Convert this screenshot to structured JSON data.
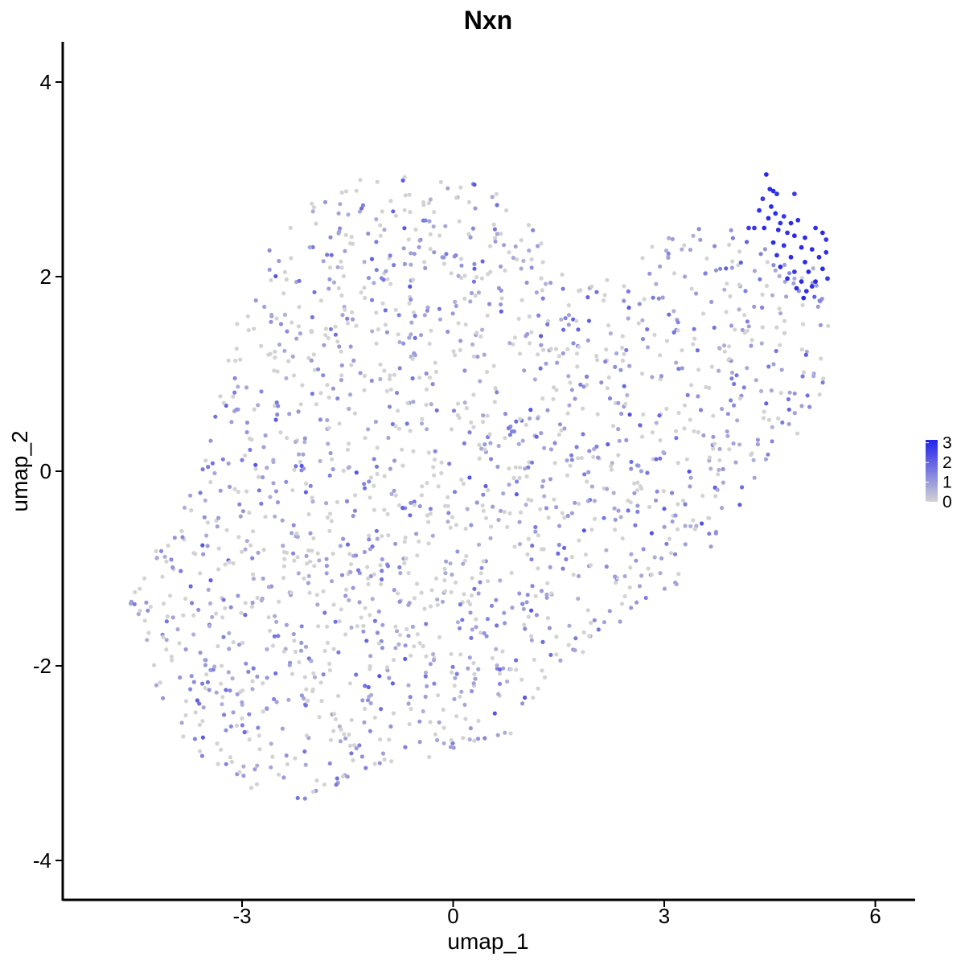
{
  "chart_data": {
    "type": "scatter",
    "title": "Nxn",
    "xlabel": "umap_1",
    "ylabel": "umap_2",
    "xlim": [
      -5.6,
      6.55
    ],
    "ylim": [
      -4.35,
      4.42
    ],
    "x_ticks": [
      -3,
      0,
      3,
      6
    ],
    "y_ticks": [
      -4,
      -2,
      0,
      2,
      4
    ],
    "x_tick_labels": [
      "-3",
      "0",
      "3",
      "6"
    ],
    "y_tick_labels": [
      "-4",
      "-2",
      "0",
      "2",
      "4"
    ],
    "grid": false,
    "legend": {
      "placement": "right",
      "type": "colorbar",
      "min": 0,
      "max": 3.15,
      "ticks": [
        0,
        1,
        2,
        3
      ],
      "tick_labels": [
        "0",
        "1",
        "2",
        "3"
      ],
      "low_color": "#d3d3d3",
      "high_color": "#2222ee"
    },
    "series": [
      {
        "points": [
          [
            4.45,
            3.05
          ],
          [
            4.5,
            2.9
          ],
          [
            4.55,
            2.88
          ],
          [
            4.6,
            2.85
          ],
          [
            4.4,
            2.8
          ],
          [
            4.52,
            2.72
          ],
          [
            4.35,
            2.68
          ],
          [
            4.58,
            2.65
          ],
          [
            4.7,
            2.62
          ],
          [
            4.48,
            2.6
          ],
          [
            4.65,
            2.55
          ],
          [
            4.8,
            2.55
          ],
          [
            4.9,
            2.58
          ],
          [
            4.28,
            2.5
          ],
          [
            4.42,
            2.5
          ],
          [
            4.62,
            2.48
          ],
          [
            4.75,
            2.45
          ],
          [
            4.85,
            2.42
          ],
          [
            5.0,
            2.4
          ],
          [
            5.15,
            2.5
          ],
          [
            5.25,
            2.45
          ],
          [
            5.3,
            2.38
          ],
          [
            4.55,
            2.35
          ],
          [
            4.7,
            2.32
          ],
          [
            4.95,
            2.3
          ],
          [
            5.1,
            2.28
          ],
          [
            4.6,
            2.22
          ],
          [
            4.8,
            2.2
          ],
          [
            5.0,
            2.15
          ],
          [
            5.2,
            2.2
          ],
          [
            4.65,
            2.1
          ],
          [
            4.85,
            2.05
          ],
          [
            5.05,
            2.05
          ],
          [
            5.25,
            2.08
          ],
          [
            4.75,
            1.98
          ],
          [
            4.95,
            1.95
          ],
          [
            5.15,
            1.95
          ],
          [
            5.32,
            1.98
          ],
          [
            4.88,
            1.88
          ],
          [
            5.02,
            1.85
          ],
          [
            4.98,
            1.78
          ],
          [
            4.85,
            2.85
          ],
          [
            4.2,
            2.5
          ],
          [
            5.1,
            1.9
          ],
          [
            5.3,
            2.25
          ]
        ],
        "values": [
          3.0,
          3.0,
          3.0,
          2.9,
          2.8,
          3.0,
          2.9,
          3.0,
          2.8,
          3.0,
          2.9,
          3.0,
          2.9,
          2.8,
          3.0,
          3.0,
          2.9,
          3.0,
          3.0,
          2.9,
          3.0,
          2.8,
          3.0,
          2.9,
          3.0,
          3.0,
          2.8,
          3.0,
          3.0,
          2.9,
          3.0,
          2.8,
          3.0,
          3.0,
          2.9,
          3.0,
          3.0,
          2.8,
          3.0,
          2.9,
          3.0,
          2.7,
          2.7,
          2.9,
          2.9
        ]
      }
    ],
    "point_summary": {
      "approx_count": 1850,
      "value_levels": [
        0,
        1,
        2,
        3
      ],
      "background_region": "elongated cloud from about (-4.7,-1.2) to (5.3,2.3), mostly values 0-1"
    }
  }
}
